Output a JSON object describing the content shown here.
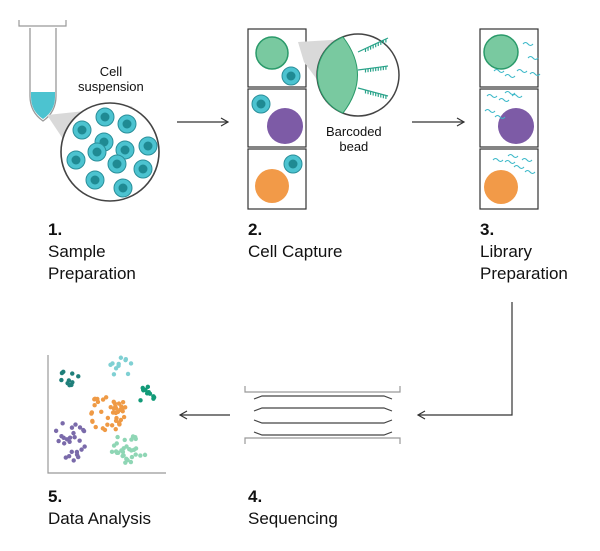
{
  "steps": [
    {
      "number": "1.",
      "label_lines": [
        "Sample",
        "Preparation"
      ]
    },
    {
      "number": "2.",
      "label_lines": [
        "Cell Capture"
      ]
    },
    {
      "number": "3.",
      "label_lines": [
        "Library",
        "Preparation"
      ]
    },
    {
      "number": "4.",
      "label_lines": [
        "Sequencing"
      ]
    },
    {
      "number": "5.",
      "label_lines": [
        "Data Analysis"
      ]
    }
  ],
  "callouts": {
    "cell_suspension": [
      "Cell",
      "suspension"
    ],
    "barcoded_bead": [
      "Barcoded",
      "bead"
    ]
  },
  "colors": {
    "cell_teal": "#4cc3d0",
    "cell_nucleus": "#1f8a93",
    "green_cell": "#79c9a0",
    "purple_cell": "#7d5ba6",
    "orange_cell": "#f29a48",
    "cluster_dark_teal": "#1f7f7a",
    "cluster_light_teal": "#7fd0d3",
    "cluster_green": "#129a78",
    "cluster_orange": "#ef9a45",
    "cluster_purple": "#7a6aaa",
    "cluster_mint": "#8fd6b5",
    "line": "#333333",
    "light_gray": "#cccccc"
  }
}
